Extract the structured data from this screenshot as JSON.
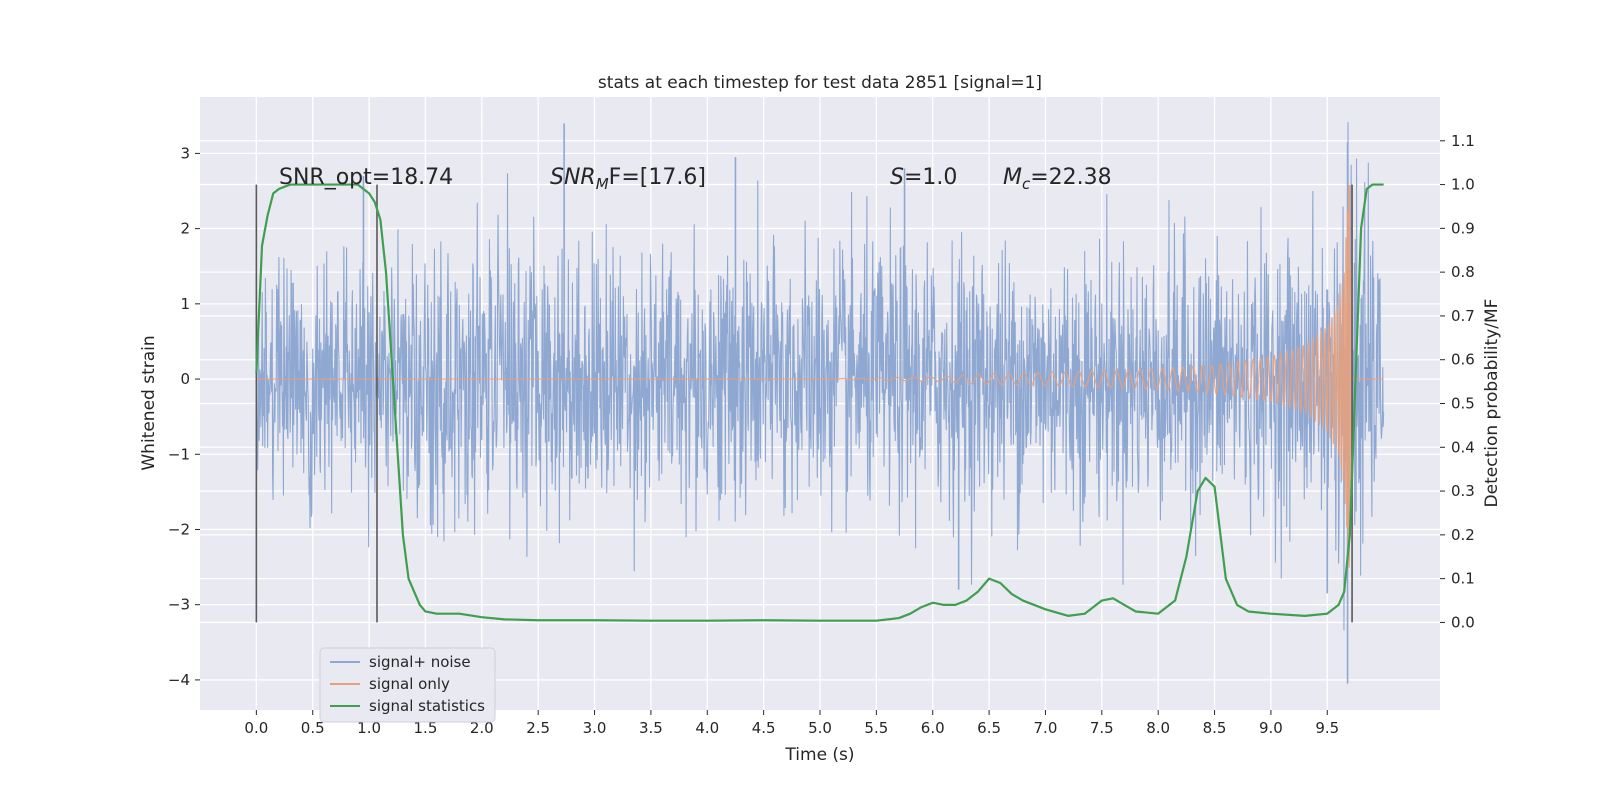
{
  "chart_data": {
    "type": "line",
    "title": "stats at each timestep for test data 2851 [signal=1]",
    "xlabel": "Time (s)",
    "ylabel": "Whitened strain",
    "ylabel_right": "Detection probability/MF",
    "xlim": [
      -0.5,
      10.5
    ],
    "ylim": [
      -4.4,
      3.75
    ],
    "ylim_right": [
      -0.2,
      1.2
    ],
    "x_ticks": [
      "0.0",
      "0.5",
      "1.0",
      "1.5",
      "2.0",
      "2.5",
      "3.0",
      "3.5",
      "4.0",
      "4.5",
      "5.0",
      "5.5",
      "6.0",
      "6.5",
      "7.0",
      "7.5",
      "8.0",
      "8.5",
      "9.0",
      "9.5"
    ],
    "y_ticks": [
      "3",
      "2",
      "1",
      "0",
      "−1",
      "−2",
      "−3",
      "−4"
    ],
    "y_right_ticks": [
      "1.1",
      "1.0",
      "0.9",
      "0.8",
      "0.7",
      "0.6",
      "0.5",
      "0.4",
      "0.3",
      "0.2",
      "0.1",
      "0.0"
    ],
    "grid": true,
    "legend_position": "lower-left",
    "annotations": {
      "snr_opt": "SNR_opt=18.74",
      "snr_mf_symbol": "SNR",
      "snr_mf_sub": "M",
      "snr_mf_rest": "F=[17.6]",
      "s_symbol": "S",
      "s_rest": "=1.0",
      "mc_symbol": "M",
      "mc_sub": "c",
      "mc_rest": "=22.38"
    },
    "markers_x": [
      0.0,
      1.07,
      9.72
    ],
    "series": [
      {
        "name": "signal+ noise",
        "color": "#8fa8d2",
        "envelope": {
          "x": [
            0.0,
            1.0,
            2.0,
            3.0,
            4.0,
            5.0,
            6.0,
            6.5,
            7.0,
            8.0,
            9.0,
            9.5,
            9.65,
            9.7,
            10.0
          ],
          "typical_amp": [
            1.4,
            1.4,
            1.4,
            1.4,
            1.4,
            1.4,
            1.4,
            1.4,
            1.4,
            1.4,
            1.4,
            1.5,
            2.2,
            2.9,
            1.0
          ],
          "peaks_max": [
            {
              "x": 2.73,
              "y": 3.4
            },
            {
              "x": 9.68,
              "y": 3.15
            },
            {
              "x": 0.95,
              "y": 2.7
            },
            {
              "x": 4.25,
              "y": 2.95
            },
            {
              "x": 5.75,
              "y": 2.8
            }
          ],
          "peaks_min": [
            {
              "x": 9.68,
              "y": -4.05
            },
            {
              "x": 6.23,
              "y": -2.8
            },
            {
              "x": 9.5,
              "y": -2.85
            }
          ]
        }
      },
      {
        "name": "signal only",
        "color": "#e5a07c",
        "envelope": {
          "x": [
            0.0,
            5.0,
            6.0,
            6.5,
            7.0,
            7.5,
            8.0,
            8.5,
            9.0,
            9.3,
            9.5,
            9.6,
            9.65,
            9.7,
            9.72,
            9.8,
            10.0
          ],
          "amp": [
            0.0,
            0.0,
            0.03,
            0.07,
            0.09,
            0.11,
            0.14,
            0.19,
            0.3,
            0.45,
            0.7,
            1.0,
            1.4,
            2.9,
            0.0,
            0.0,
            0.0
          ]
        }
      },
      {
        "name": "signal statistics",
        "color": "#3f9e50",
        "x": [
          0.0,
          0.05,
          0.1,
          0.15,
          0.2,
          0.3,
          0.5,
          0.7,
          0.9,
          1.0,
          1.05,
          1.1,
          1.15,
          1.2,
          1.25,
          1.3,
          1.35,
          1.4,
          1.45,
          1.5,
          1.6,
          1.8,
          2.0,
          2.2,
          2.5,
          3.0,
          3.5,
          4.0,
          4.5,
          5.0,
          5.5,
          5.7,
          5.8,
          5.9,
          6.0,
          6.1,
          6.2,
          6.3,
          6.4,
          6.5,
          6.6,
          6.7,
          6.8,
          7.0,
          7.2,
          7.35,
          7.5,
          7.6,
          7.7,
          7.8,
          8.0,
          8.15,
          8.25,
          8.35,
          8.42,
          8.5,
          8.6,
          8.7,
          8.8,
          9.0,
          9.3,
          9.5,
          9.6,
          9.65,
          9.7,
          9.75,
          9.8,
          9.85,
          9.9,
          9.95,
          10.0
        ],
        "y": [
          0.57,
          0.86,
          0.93,
          0.98,
          0.99,
          1.0,
          1.0,
          1.0,
          1.0,
          0.98,
          0.96,
          0.92,
          0.8,
          0.6,
          0.4,
          0.2,
          0.1,
          0.07,
          0.04,
          0.025,
          0.02,
          0.02,
          0.012,
          0.007,
          0.005,
          0.005,
          0.004,
          0.004,
          0.005,
          0.004,
          0.004,
          0.01,
          0.02,
          0.035,
          0.045,
          0.04,
          0.04,
          0.05,
          0.07,
          0.1,
          0.09,
          0.065,
          0.05,
          0.03,
          0.015,
          0.02,
          0.05,
          0.055,
          0.04,
          0.025,
          0.02,
          0.05,
          0.15,
          0.3,
          0.33,
          0.31,
          0.1,
          0.04,
          0.025,
          0.02,
          0.015,
          0.02,
          0.04,
          0.07,
          0.2,
          0.55,
          0.9,
          0.99,
          1.0,
          1.0,
          1.0
        ]
      }
    ]
  }
}
